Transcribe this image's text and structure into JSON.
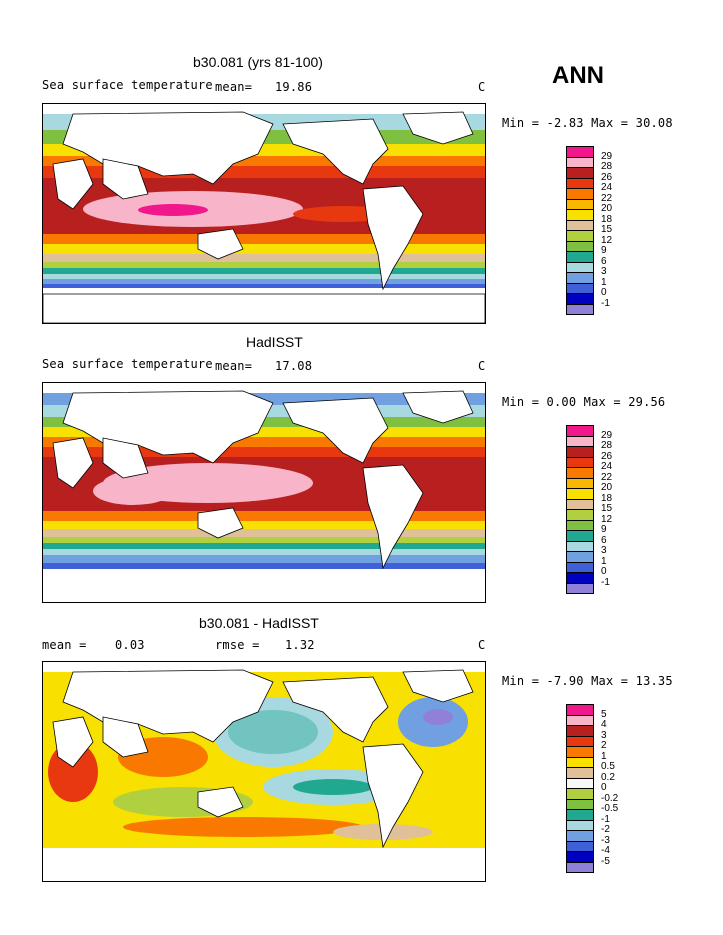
{
  "header": {
    "season": "ANN"
  },
  "panels": [
    {
      "id": "model",
      "title": "b30.081 (yrs 81-100)",
      "left_text": "Sea surface temperature",
      "stat_label": "mean=",
      "stat_value": "19.86",
      "rmse_label": "",
      "rmse_value": "",
      "units": "C",
      "range_text": "Min =  -2.83 Max =  30.08"
    },
    {
      "id": "obs",
      "title": "HadISST",
      "left_text": "Sea surface temperature",
      "stat_label": "mean=",
      "stat_value": "17.08",
      "rmse_label": "",
      "rmse_value": "",
      "units": "C",
      "range_text": "Min =   0.00 Max =  29.56"
    },
    {
      "id": "diff",
      "title": "b30.081 - HadISST",
      "left_text": "",
      "stat_label": "mean =",
      "stat_value": "0.03",
      "rmse_label": "rmse =",
      "rmse_value": "1.32",
      "units": "C",
      "range_text": "Min =  -7.90 Max =  13.35"
    }
  ],
  "chart_data": [
    {
      "type": "heatmap",
      "title": "b30.081 (yrs 81-100)",
      "variable": "Sea surface temperature",
      "units": "C",
      "mean": 19.86,
      "min": -2.83,
      "max": 30.08,
      "legend_levels": [
        "29",
        "28",
        "26",
        "24",
        "22",
        "20",
        "18",
        "15",
        "12",
        "9",
        "6",
        "3",
        "1",
        "0",
        "-1"
      ],
      "legend_colors": [
        "#f0188c",
        "#f8b4c8",
        "#b82020",
        "#e83810",
        "#f87800",
        "#f8b800",
        "#f8e000",
        "#e0c098",
        "#b0d040",
        "#80c040",
        "#20a890",
        "#a8d8e0",
        "#70a0e0",
        "#4060d8",
        "#0000c0",
        "#9080d8"
      ]
    },
    {
      "type": "heatmap",
      "title": "HadISST",
      "variable": "Sea surface temperature",
      "units": "C",
      "mean": 17.08,
      "min": 0.0,
      "max": 29.56,
      "legend_levels": [
        "29",
        "28",
        "26",
        "24",
        "22",
        "20",
        "18",
        "15",
        "12",
        "9",
        "6",
        "3",
        "1",
        "0",
        "-1"
      ],
      "legend_colors": [
        "#f0188c",
        "#f8b4c8",
        "#b82020",
        "#e83810",
        "#f87800",
        "#f8b800",
        "#f8e000",
        "#e0c098",
        "#b0d040",
        "#80c040",
        "#20a890",
        "#a8d8e0",
        "#70a0e0",
        "#4060d8",
        "#0000c0",
        "#9080d8"
      ]
    },
    {
      "type": "heatmap",
      "title": "b30.081 - HadISST",
      "units": "C",
      "mean": 0.03,
      "rmse": 1.32,
      "min": -7.9,
      "max": 13.35,
      "legend_levels": [
        "5",
        "4",
        "3",
        "2",
        "1",
        "0.5",
        "0.2",
        "0",
        "-0.2",
        "-0.5",
        "-1",
        "-2",
        "-3",
        "-4",
        "-5"
      ],
      "legend_colors": [
        "#f0188c",
        "#f8b4c8",
        "#b82020",
        "#e83810",
        "#f87800",
        "#f8e000",
        "#e0c098",
        "#f8f8f8",
        "#b0d040",
        "#80c040",
        "#20a890",
        "#a8d8e0",
        "#70a0e0",
        "#4060d8",
        "#0000c0",
        "#9080d8"
      ]
    }
  ]
}
